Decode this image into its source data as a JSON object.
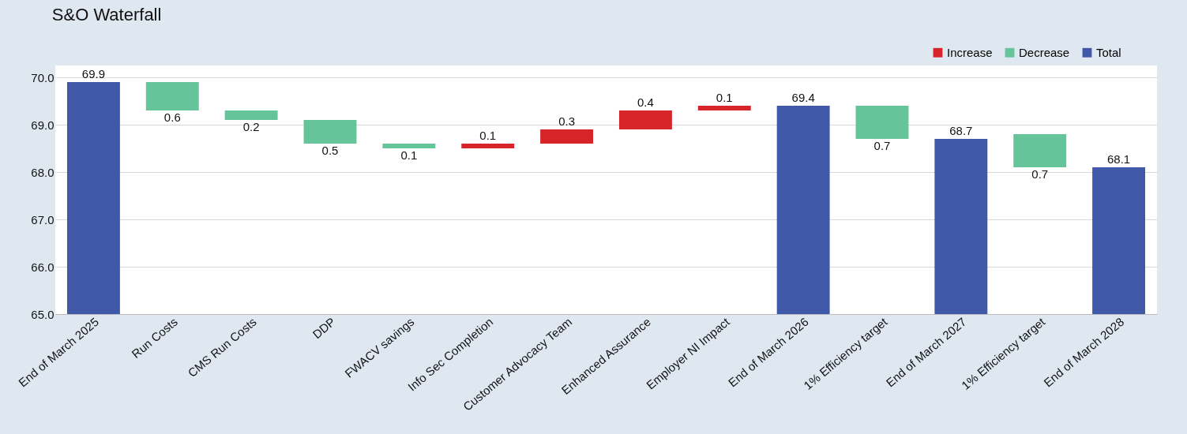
{
  "chart_data": {
    "type": "bar",
    "title": "S&O Waterfall",
    "categories": [
      "End of March 2025",
      "Run Costs",
      "CMS Run Costs",
      "DDP",
      "FWACV savings",
      "Info Sec Completion",
      "Customer Advocacy Team",
      "Enhanced Assurance",
      "Employer NI Impact",
      "End of March 2026",
      "1% Efficiency target",
      "End of March 2027",
      "1% Efficiency target",
      "End of March 2028"
    ],
    "series": [
      {
        "name": "Increase",
        "color": "#d62429",
        "values": [
          null,
          null,
          null,
          null,
          null,
          0.1,
          0.3,
          0.4,
          0.1,
          null,
          null,
          null,
          null,
          null
        ],
        "base": [
          null,
          null,
          null,
          null,
          null,
          68.5,
          68.6,
          68.9,
          69.3,
          null,
          null,
          null,
          null,
          null
        ],
        "value_labels": [
          null,
          null,
          null,
          null,
          null,
          "0.1",
          "0.3",
          "0.4",
          "0.1",
          null,
          null,
          null,
          null,
          null
        ]
      },
      {
        "name": "Decrease",
        "color": "#66c49b",
        "values": [
          null,
          0.6,
          0.2,
          0.5,
          0.1,
          null,
          null,
          null,
          null,
          null,
          0.7,
          null,
          0.7,
          null
        ],
        "base": [
          null,
          69.3,
          69.1,
          68.6,
          68.5,
          null,
          null,
          null,
          null,
          null,
          68.7,
          null,
          68.1,
          null
        ],
        "value_labels": [
          null,
          "0.6",
          "0.2",
          "0.5",
          "0.1",
          null,
          null,
          null,
          null,
          null,
          "0.7",
          null,
          "0.7",
          null
        ]
      },
      {
        "name": "Total",
        "color": "#3f58a8",
        "values": [
          69.9,
          null,
          null,
          null,
          null,
          null,
          null,
          null,
          null,
          69.4,
          null,
          68.7,
          null,
          68.1
        ],
        "value_labels": [
          "69.9",
          null,
          null,
          null,
          null,
          null,
          null,
          null,
          null,
          "69.4",
          null,
          "68.7",
          null,
          "68.1"
        ]
      }
    ],
    "ylim": [
      65,
      70.25
    ],
    "yticks": [
      {
        "value": 65,
        "label": "65.0"
      },
      {
        "value": 66,
        "label": "66.0"
      },
      {
        "value": 67,
        "label": "67.0"
      },
      {
        "value": 68,
        "label": "68.0"
      },
      {
        "value": 69,
        "label": "69.0"
      },
      {
        "value": 70,
        "label": "70.0"
      }
    ],
    "grid": "y",
    "legend": "top right"
  }
}
